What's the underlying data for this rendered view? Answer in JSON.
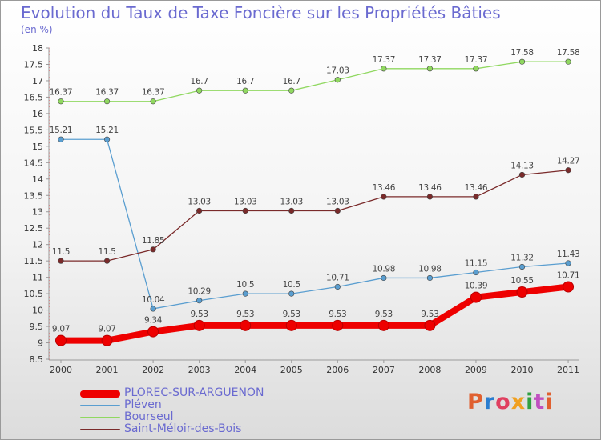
{
  "title": "Evolution du Taux de Taxe Foncière sur les Propriétés Bâties",
  "subtitle": "(en %)",
  "logo": {
    "text": "Proxiti",
    "colors": [
      "#e06030",
      "#2a7dd0",
      "#e04060",
      "#f0a020",
      "#30a040",
      "#c050c0",
      "#e06030"
    ]
  },
  "chart_data": {
    "type": "line",
    "title": "Evolution du Taux de Taxe Foncière sur les Propriétés Bâties",
    "ylabel": "(en %)",
    "xlabel": "",
    "x": [
      "2000",
      "2001",
      "2002",
      "2003",
      "2004",
      "2005",
      "2006",
      "2007",
      "2008",
      "2009",
      "2010",
      "2011"
    ],
    "ylim": [
      8.5,
      18
    ],
    "yticks": [
      "8.5",
      "9",
      "9.5",
      "10",
      "10.5",
      "11",
      "11.5",
      "12",
      "12.5",
      "13",
      "13.5",
      "14",
      "14.5",
      "15",
      "15.5",
      "16",
      "16.5",
      "17",
      "17.5",
      "18"
    ],
    "grid": false,
    "legend_position": "bottom-left",
    "series": [
      {
        "name": "PLOREC-SUR-ARGUENON",
        "color": "#ee0000",
        "values": [
          9.07,
          9.07,
          9.34,
          9.53,
          9.53,
          9.53,
          9.53,
          9.53,
          9.53,
          10.39,
          10.55,
          10.71
        ],
        "labels": [
          "9.07",
          "9.07",
          "9.34",
          "9.53",
          "9.53",
          "9.53",
          "9.53",
          "9.53",
          "9.53",
          "10.39",
          "10.55",
          "10.71"
        ]
      },
      {
        "name": "Pléven",
        "color": "#5a9ed0",
        "values": [
          15.21,
          15.21,
          10.04,
          10.29,
          10.5,
          10.5,
          10.71,
          10.98,
          10.98,
          11.15,
          11.32,
          11.43
        ],
        "labels": [
          "15.21",
          "15.21",
          "10.04",
          "10.29",
          "10.5",
          "10.5",
          "10.71",
          "10.98",
          "10.98",
          "11.15",
          "11.32",
          "11.43"
        ]
      },
      {
        "name": "Bourseul",
        "color": "#90d860",
        "values": [
          16.37,
          16.37,
          16.37,
          16.7,
          16.7,
          16.7,
          17.03,
          17.37,
          17.37,
          17.37,
          17.58,
          17.58
        ],
        "labels": [
          "16.37",
          "16.37",
          "16.37",
          "16.7",
          "16.7",
          "16.7",
          "17.03",
          "17.37",
          "17.37",
          "17.37",
          "17.58",
          "17.58"
        ]
      },
      {
        "name": "Saint-Méloir-des-Bois",
        "color": "#7a2a2a",
        "values": [
          11.5,
          11.5,
          11.85,
          13.03,
          13.03,
          13.03,
          13.03,
          13.46,
          13.46,
          13.46,
          14.13,
          14.27
        ],
        "labels": [
          "11.5",
          "11.5",
          "11.85",
          "13.03",
          "13.03",
          "13.03",
          "13.03",
          "13.46",
          "13.46",
          "13.46",
          "14.13",
          "14.27"
        ]
      }
    ]
  }
}
